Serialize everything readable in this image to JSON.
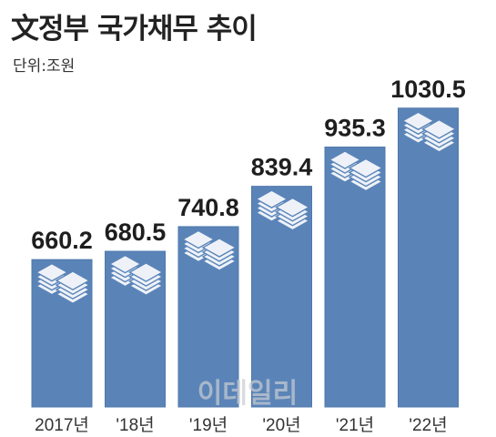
{
  "chart_data": {
    "type": "bar",
    "title": "文정부 국가채무 추이",
    "subtitle": "단위:조원",
    "categories": [
      "2017년",
      "'18년",
      "'19년",
      "'20년",
      "'21년",
      "'22년"
    ],
    "values": [
      660.2,
      680.5,
      740.8,
      839.4,
      935.3,
      1030.5
    ],
    "value_labels": [
      "660.2",
      "680.5",
      "740.8",
      "839.4",
      "935.3",
      "1030.5"
    ],
    "xlabel": "",
    "ylabel": "",
    "ylim": [
      300,
      1050
    ],
    "grid": false,
    "legend": "none",
    "colors": {
      "bar": "#5a84b8",
      "bar_edge": "#4f78ab",
      "icon_light": "#eef2f8",
      "icon_stroke": "#5a84b8"
    }
  },
  "watermark": "이데일리"
}
